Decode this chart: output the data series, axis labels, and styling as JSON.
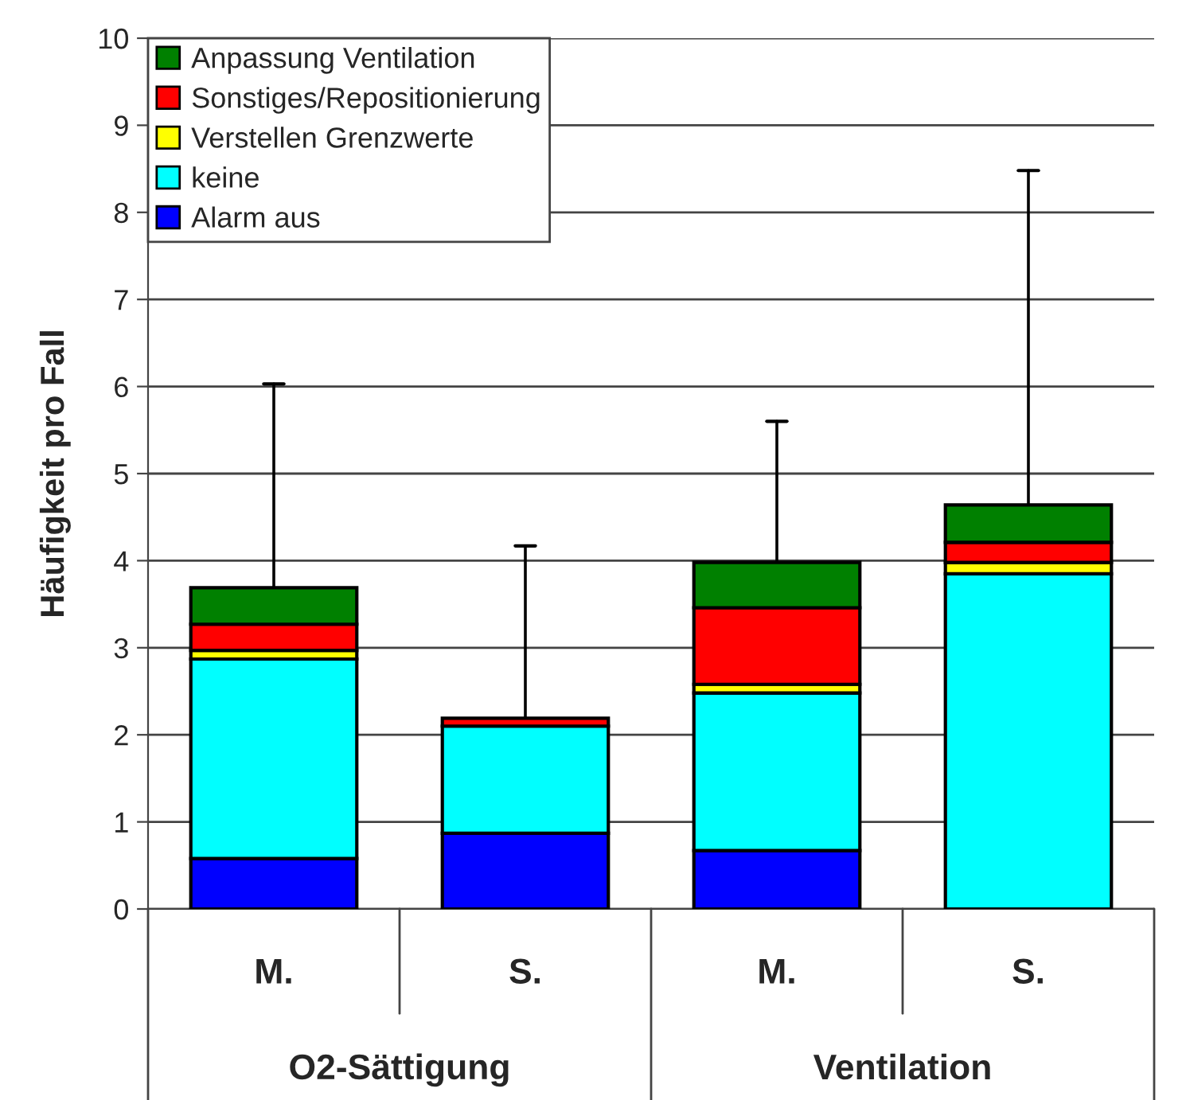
{
  "chart_data": {
    "type": "bar",
    "stacked": true,
    "ylabel": "Häufigkeit pro Fall",
    "categories": [
      "M.",
      "S.",
      "M.",
      "S."
    ],
    "annotations": [
      "O2-Sättigung",
      "Ventilation"
    ],
    "series": [
      {
        "name": "Alarm aus",
        "color": "#0000ff",
        "values": [
          0.58,
          0.87,
          0.67,
          0
        ]
      },
      {
        "name": "keine",
        "color": "#00ffff",
        "values": [
          2.29,
          1.23,
          1.81,
          3.85
        ]
      },
      {
        "name": "Verstellen Grenzwerte",
        "color": "#ffff00",
        "values": [
          0.1,
          0,
          0.1,
          0.13
        ]
      },
      {
        "name": "Sonstiges/Repositionierung",
        "color": "#ff0000",
        "values": [
          0.3,
          0.09,
          0.88,
          0.23
        ]
      },
      {
        "name": "Anpassung Ventilation",
        "color": "#008000",
        "values": [
          0.42,
          0,
          0.52,
          0.43
        ],
        "errors": [
          [
            3.69,
            6.03
          ],
          [
            2.19,
            4.17
          ],
          [
            3.98,
            5.6
          ],
          [
            4.64,
            8.48
          ]
        ]
      }
    ],
    "ylim": [
      0,
      10
    ],
    "yticks": [
      0,
      1,
      2,
      3,
      4,
      5,
      6,
      7,
      8,
      9,
      10
    ],
    "grid": "y",
    "legend": "top left"
  }
}
